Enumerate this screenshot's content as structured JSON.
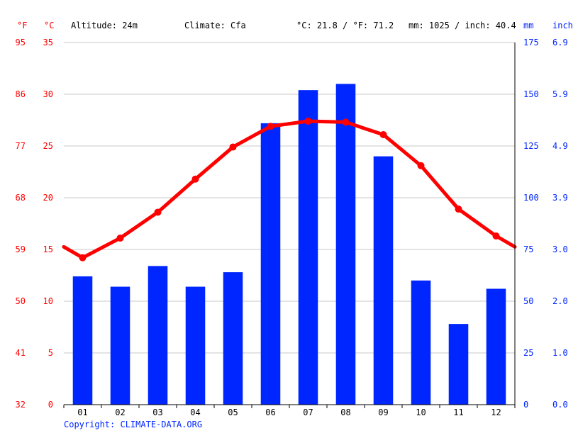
{
  "header": {
    "unit_f": "°F",
    "unit_c": "°C",
    "altitude": "Altitude: 24m",
    "climate": "Climate: Cfa",
    "temp_avg": "°C: 21.8 / °F: 71.2",
    "precip_total": "mm: 1025 / inch: 40.4",
    "unit_mm": "mm",
    "unit_inch": "inch"
  },
  "copyright": "Copyright: CLIMATE-DATA.ORG",
  "colors": {
    "temperature": "#ff0000",
    "precipitation": "#0026ff",
    "grid": "#c8c8c8",
    "text": "#000000"
  },
  "chart_data": {
    "type": "bar",
    "categories": [
      "01",
      "02",
      "03",
      "04",
      "05",
      "06",
      "07",
      "08",
      "09",
      "10",
      "11",
      "12"
    ],
    "series": [
      {
        "type": "bar",
        "axis": "precipitation",
        "unit": "mm",
        "values": [
          62,
          57,
          67,
          57,
          64,
          136,
          152,
          155,
          120,
          60,
          39,
          56
        ]
      },
      {
        "type": "line",
        "axis": "temperature",
        "unit": "°C",
        "values": [
          14.2,
          16.1,
          18.6,
          21.8,
          24.9,
          26.9,
          27.4,
          27.3,
          26.1,
          23.1,
          18.9,
          16.3
        ]
      }
    ],
    "temp_axis": {
      "celsius_ticks": [
        "0",
        "5",
        "10",
        "15",
        "20",
        "25",
        "30",
        "35"
      ],
      "fahrenheit_ticks": [
        "32",
        "41",
        "50",
        "59",
        "68",
        "77",
        "86",
        "95"
      ],
      "ylim": [
        0,
        35
      ]
    },
    "precip_axis": {
      "mm_ticks": [
        "0",
        "25",
        "50",
        "75",
        "100",
        "125",
        "150",
        "175"
      ],
      "inch_ticks": [
        "0.0",
        "1.0",
        "2.0",
        "3.0",
        "3.9",
        "4.9",
        "5.9",
        "6.9"
      ],
      "ylim": [
        0,
        175
      ]
    },
    "grid": true
  }
}
